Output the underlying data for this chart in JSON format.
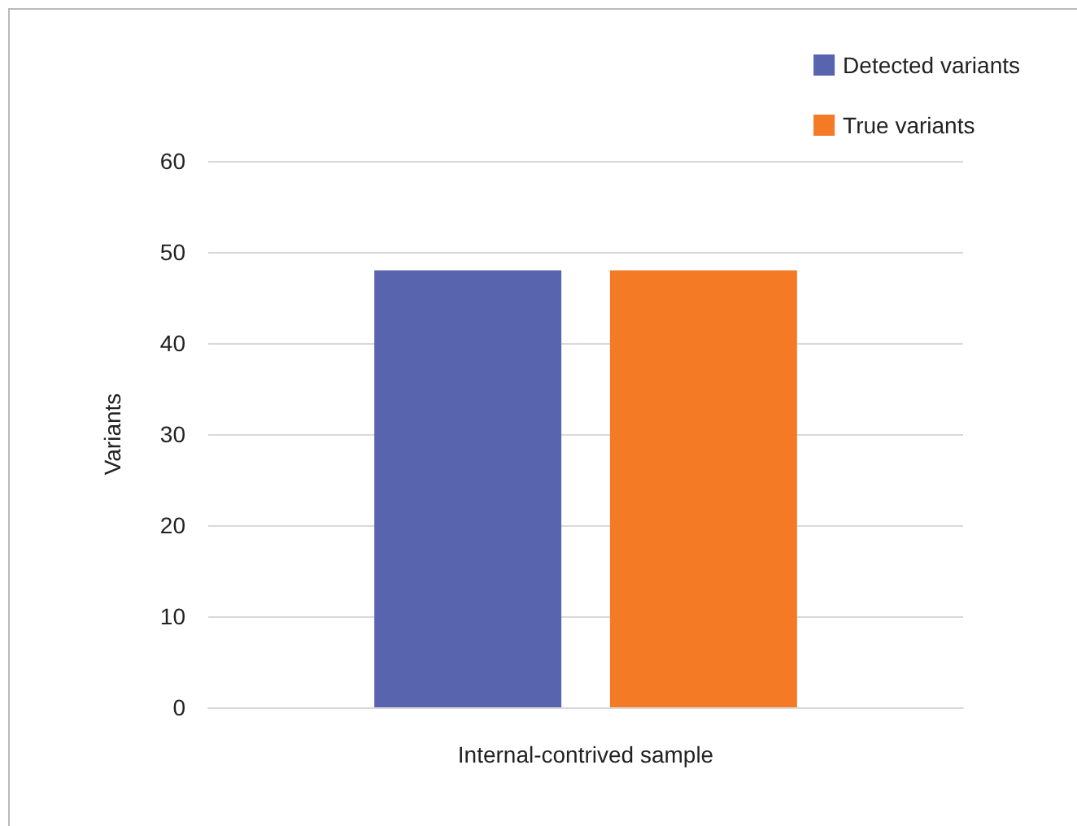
{
  "chart_data": {
    "type": "bar",
    "ylabel": "Variants",
    "categories": [
      "Internal-contrived sample"
    ],
    "series": [
      {
        "name": "Detected variants",
        "color": "#5865ae",
        "values": [
          48
        ]
      },
      {
        "name": "True variants",
        "color": "#f47a26",
        "values": [
          48
        ]
      }
    ],
    "ylim": [
      0,
      60
    ],
    "yticks": [
      0,
      10,
      20,
      30,
      40,
      50,
      60
    ],
    "grid": "y",
    "legend": "top right"
  }
}
